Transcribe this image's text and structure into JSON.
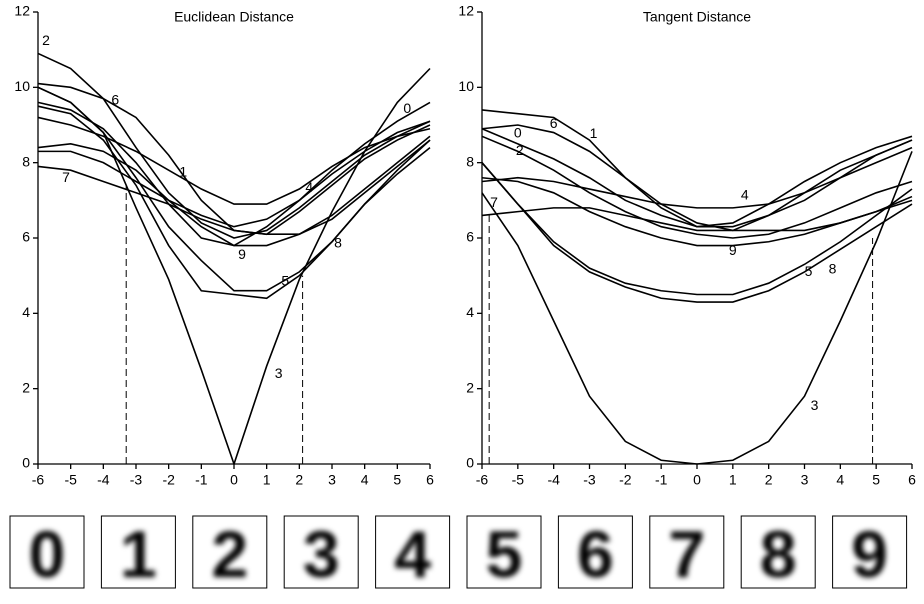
{
  "chart_data": [
    {
      "type": "line",
      "title": "Euclidean Distance",
      "color": "#000000",
      "x": [
        -6,
        -5,
        -4,
        -3,
        -2,
        -1,
        0,
        1,
        2,
        3,
        4,
        5,
        6
      ],
      "xlim": [
        -6,
        6
      ],
      "xticks": [
        -6,
        -5,
        -4,
        -3,
        -2,
        -1,
        0,
        1,
        2,
        3,
        4,
        5,
        6
      ],
      "ylim": [
        0,
        12
      ],
      "yticks": [
        0,
        2,
        4,
        6,
        8,
        10,
        12
      ],
      "series": [
        {
          "name": "0",
          "values": [
            9.6,
            9.4,
            8.9,
            8.0,
            6.9,
            6.0,
            5.8,
            6.3,
            7.0,
            7.8,
            8.5,
            9.1,
            9.6
          ]
        },
        {
          "name": "1",
          "values": [
            9.2,
            9.0,
            8.7,
            8.3,
            7.8,
            7.3,
            6.9,
            6.9,
            7.3,
            7.9,
            8.4,
            8.7,
            8.9
          ]
        },
        {
          "name": "2",
          "values": [
            10.9,
            10.5,
            9.7,
            8.4,
            7.2,
            6.4,
            6.0,
            6.2,
            6.8,
            7.5,
            8.2,
            8.7,
            9.1
          ]
        },
        {
          "name": "3",
          "values": [
            10.0,
            9.6,
            8.8,
            6.8,
            4.9,
            2.5,
            0,
            2.6,
            4.9,
            6.7,
            8.3,
            9.6,
            10.5
          ]
        },
        {
          "name": "4",
          "values": [
            8.3,
            8.3,
            8.0,
            7.5,
            7.0,
            6.6,
            6.3,
            6.5,
            7.0,
            7.7,
            8.3,
            8.8,
            9.1
          ]
        },
        {
          "name": "5",
          "values": [
            9.5,
            9.3,
            8.6,
            7.4,
            5.8,
            4.6,
            4.5,
            4.4,
            5.0,
            5.9,
            6.9,
            7.8,
            8.6
          ]
        },
        {
          "name": "6",
          "values": [
            10.1,
            10.0,
            9.7,
            9.2,
            8.2,
            7.0,
            6.2,
            6.1,
            6.7,
            7.4,
            8.1,
            8.6,
            9.0
          ]
        },
        {
          "name": "7",
          "values": [
            7.9,
            7.8,
            7.5,
            7.2,
            6.9,
            6.5,
            6.2,
            6.1,
            6.1,
            6.5,
            7.2,
            7.9,
            8.6
          ]
        },
        {
          "name": "8",
          "values": [
            10.0,
            9.6,
            8.8,
            7.6,
            6.3,
            5.4,
            4.6,
            4.6,
            5.1,
            5.9,
            6.9,
            7.7,
            8.4
          ]
        },
        {
          "name": "9",
          "values": [
            8.4,
            8.5,
            8.3,
            7.8,
            7.0,
            6.3,
            5.8,
            5.8,
            6.1,
            6.6,
            7.3,
            8.0,
            8.7
          ]
        }
      ],
      "markers": [
        {
          "x": -3.3,
          "y": 7.4
        },
        {
          "x": 2.1,
          "y": 5.0
        }
      ]
    },
    {
      "type": "line",
      "title": "Tangent Distance",
      "color": "#000000",
      "x": [
        -6,
        -5,
        -4,
        -3,
        -2,
        -1,
        0,
        1,
        2,
        3,
        4,
        5,
        6
      ],
      "xlim": [
        -6,
        6
      ],
      "xticks": [
        -6,
        -5,
        -4,
        -3,
        -2,
        -1,
        0,
        1,
        2,
        3,
        4,
        5,
        6
      ],
      "ylim": [
        0,
        12
      ],
      "yticks": [
        0,
        2,
        4,
        6,
        8,
        10,
        12
      ],
      "series": [
        {
          "name": "0",
          "values": [
            8.9,
            8.5,
            8.1,
            7.6,
            7.0,
            6.6,
            6.3,
            6.3,
            6.6,
            7.0,
            7.6,
            8.2,
            8.6
          ]
        },
        {
          "name": "1",
          "values": [
            9.4,
            9.3,
            9.2,
            8.6,
            7.6,
            6.8,
            6.3,
            6.4,
            6.9,
            7.5,
            8.0,
            8.4,
            8.7
          ]
        },
        {
          "name": "2",
          "values": [
            8.7,
            8.3,
            7.8,
            7.2,
            6.7,
            6.3,
            6.1,
            6.0,
            6.1,
            6.4,
            6.8,
            7.2,
            7.5
          ]
        },
        {
          "name": "3",
          "values": [
            7.2,
            5.8,
            3.8,
            1.8,
            0.6,
            0.1,
            0,
            0.1,
            0.6,
            1.8,
            3.8,
            5.9,
            8.3
          ]
        },
        {
          "name": "4",
          "values": [
            7.5,
            7.6,
            7.5,
            7.3,
            7.1,
            6.9,
            6.8,
            6.8,
            6.9,
            7.2,
            7.6,
            8.0,
            8.4
          ]
        },
        {
          "name": "5",
          "values": [
            8.0,
            6.9,
            5.9,
            5.2,
            4.8,
            4.6,
            4.5,
            4.5,
            4.8,
            5.3,
            5.9,
            6.6,
            7.3
          ]
        },
        {
          "name": "6",
          "values": [
            8.9,
            9.0,
            8.8,
            8.3,
            7.6,
            6.9,
            6.4,
            6.2,
            6.6,
            7.2,
            7.8,
            8.2,
            8.6
          ]
        },
        {
          "name": "7",
          "values": [
            6.6,
            6.7,
            6.8,
            6.8,
            6.6,
            6.4,
            6.2,
            6.2,
            6.2,
            6.2,
            6.4,
            6.7,
            7.1
          ]
        },
        {
          "name": "8",
          "values": [
            8.0,
            6.9,
            5.8,
            5.1,
            4.7,
            4.4,
            4.3,
            4.3,
            4.6,
            5.1,
            5.7,
            6.3,
            6.9
          ]
        },
        {
          "name": "9",
          "values": [
            7.6,
            7.5,
            7.2,
            6.7,
            6.3,
            6.0,
            5.8,
            5.8,
            5.9,
            6.1,
            6.4,
            6.7,
            7.0
          ]
        }
      ],
      "markers": [
        {
          "x": -5.8,
          "y": 6.7
        },
        {
          "x": 4.9,
          "y": 6.0
        }
      ]
    }
  ],
  "digit_images": [
    "0",
    "1",
    "2",
    "3",
    "4",
    "5",
    "6",
    "7",
    "8",
    "9"
  ]
}
